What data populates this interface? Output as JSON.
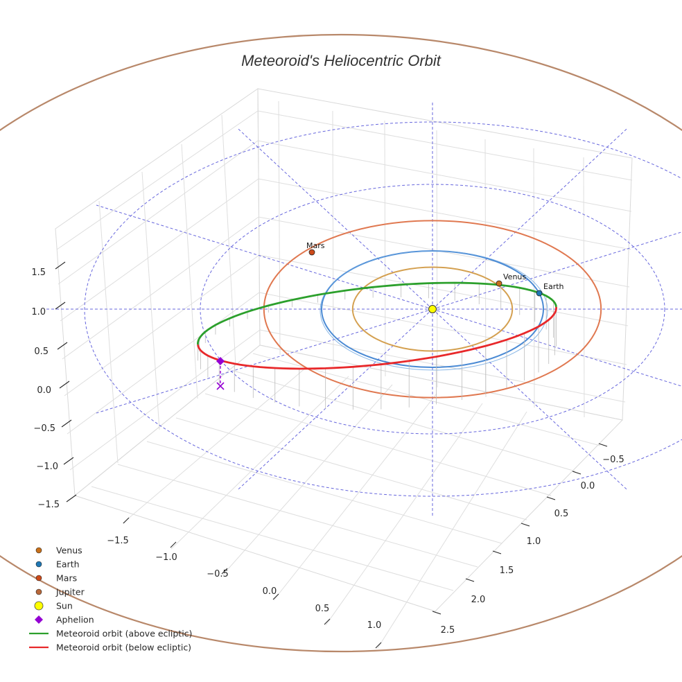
{
  "chart_data": {
    "type": "3d-orbit",
    "title": "Meteoroid's Heliocentric Orbit",
    "axes": {
      "x": {
        "ticks": [
          -1.5,
          -1.0,
          -0.5,
          0.0,
          0.5,
          1.0
        ],
        "tick_labels": [
          "−1.5",
          "−1.0",
          "−0.5",
          "0.0",
          "0.5",
          "1.0"
        ]
      },
      "y": {
        "ticks": [
          -0.5,
          0.0,
          0.5,
          1.0,
          1.5,
          2.0,
          2.5
        ],
        "tick_labels": [
          "−0.5",
          "0.0",
          "0.5",
          "1.0",
          "1.5",
          "2.0",
          "2.5"
        ]
      },
      "z": {
        "ticks": [
          -1.5,
          -1.0,
          -0.5,
          0.0,
          0.5,
          1.0,
          1.5
        ],
        "tick_labels": [
          "−1.5",
          "−1.0",
          "−0.5",
          "0.0",
          "0.5",
          "1.0",
          "1.5"
        ]
      }
    },
    "planets": [
      {
        "name": "Venus",
        "label": "Venus",
        "a_au": 0.72,
        "color": "#d4a050",
        "marker_color": "#c8701a"
      },
      {
        "name": "Earth",
        "label": "Earth",
        "a_au": 1.0,
        "color": "#4a8ad4",
        "marker_color": "#1f77b4"
      },
      {
        "name": "Mars",
        "label": "Mars",
        "a_au": 1.52,
        "color": "#e07850",
        "marker_color": "#cc4a1a"
      },
      {
        "name": "Jupiter",
        "label": "Jupiter",
        "a_au": 5.2,
        "color": "#b8886a",
        "marker_color": "#b8683a"
      }
    ],
    "sun": {
      "label": "Sun",
      "color": "#ffff00"
    },
    "aphelion": {
      "label": "Aphelion",
      "color": "#9400d3"
    },
    "meteoroid": {
      "perihelion_au": 0.9,
      "aphelion_au": 2.55,
      "above_label": "Meteoroid orbit (above ecliptic)",
      "below_label": "Meteoroid orbit (below ecliptic)",
      "above_color": "#2ca02c",
      "below_color": "#e8282a"
    },
    "legend": [
      {
        "kind": "dot",
        "label": "Venus",
        "color": "#c8701a"
      },
      {
        "kind": "dot",
        "label": "Earth",
        "color": "#1f77b4"
      },
      {
        "kind": "dot",
        "label": "Mars",
        "color": "#cc4a1a"
      },
      {
        "kind": "dot",
        "label": "Jupiter",
        "color": "#b8683a"
      },
      {
        "kind": "sun",
        "label": "Sun",
        "color": "#ffff00"
      },
      {
        "kind": "diamond",
        "label": "Aphelion",
        "color": "#9400d3"
      },
      {
        "kind": "line",
        "label": "Meteoroid orbit (above ecliptic)",
        "color": "#2ca02c"
      },
      {
        "kind": "line",
        "label": "Meteoroid orbit (below ecliptic)",
        "color": "#e8282a"
      }
    ],
    "ecliptic_grid": {
      "color": "#6666dd",
      "style": "dashed"
    }
  }
}
